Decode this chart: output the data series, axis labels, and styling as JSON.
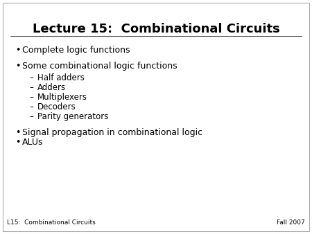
{
  "title": "Lecture 15:  Combinational Circuits",
  "background_color": "#ffffff",
  "border_color": "#aaaaaa",
  "title_fontsize": 13,
  "body_fontsize": 9,
  "sub_fontsize": 8.5,
  "small_fontsize": 6.5,
  "bullet1": "Complete logic functions",
  "bullet2": "Some combinational logic functions",
  "subbullets": [
    "Half adders",
    "Adders",
    "Multiplexers",
    "Decoders",
    "Parity generators"
  ],
  "bullet3": "Signal propagation in combinational logic",
  "bullet4": "ALUs",
  "footer_left": "L15:  Combinational Circuits",
  "footer_right": "Fall 2007",
  "text_color": "#000000",
  "title_color": "#000000"
}
